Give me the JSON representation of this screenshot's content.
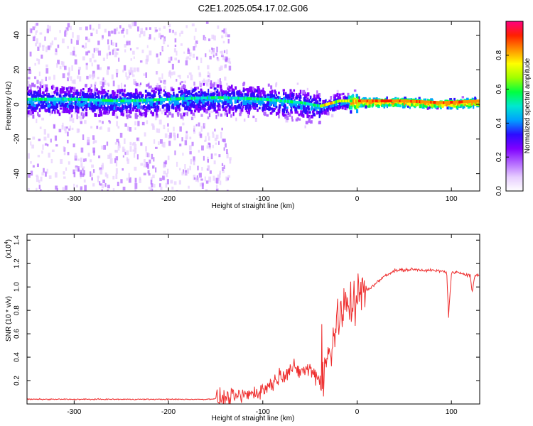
{
  "title": "C2E1.2025.054.17.02.G06",
  "chart_data": [
    {
      "type": "heatmap",
      "xlabel": "Height of straight line (km)",
      "ylabel": "Frequency (Hz)",
      "xlim": [
        -350,
        130
      ],
      "ylim": [
        -50,
        48
      ],
      "xticks": [
        "-300",
        "-200",
        "-100",
        "0",
        "100"
      ],
      "xtick_values": [
        -300,
        -200,
        -100,
        0,
        100
      ],
      "yticks": [
        "-40",
        "-20",
        "0",
        "20",
        "40"
      ],
      "ytick_values": [
        -40,
        -20,
        0,
        20,
        40
      ],
      "colorbar": {
        "label": "Normalized spectral amplitude",
        "range": [
          0,
          1
        ],
        "ticks": [
          "0.0",
          "0.2",
          "0.4",
          "0.6",
          "0.8"
        ],
        "tick_values": [
          0.0,
          0.2,
          0.4,
          0.6,
          0.8
        ],
        "colors": [
          "#ffffff",
          "#e6ccff",
          "#b266ff",
          "#7f00ff",
          "#2c0cff",
          "#00a0ff",
          "#00e8d0",
          "#00ff40",
          "#a0ff00",
          "#ffff00",
          "#ff9000",
          "#ff2000",
          "#ff0080"
        ]
      },
      "series": [
        {
          "x": [
            -350,
            -300,
            -250,
            -200,
            -150,
            -100,
            -60,
            -40,
            -20,
            0,
            50,
            90,
            130
          ],
          "y": [
            3,
            3,
            2,
            3,
            4,
            3,
            1,
            -1,
            2,
            2,
            2,
            1,
            2
          ]
        }
      ]
    },
    {
      "type": "line",
      "xlabel": "Height of straight line (km)",
      "ylabel": "SNR (10 * v/v)",
      "scale_label": "(x10",
      "scale_exp": "4",
      "xlim": [
        -350,
        130
      ],
      "ylim": [
        0,
        1.45
      ],
      "xticks": [
        "-300",
        "-200",
        "-100",
        "0",
        "100"
      ],
      "xtick_values": [
        -300,
        -200,
        -100,
        0,
        100
      ],
      "yticks": [
        "0.2",
        "0.4",
        "0.6",
        "0.8",
        "1.0",
        "1.2",
        "1.4"
      ],
      "ytick_values": [
        0.2,
        0.4,
        0.6,
        0.8,
        1.0,
        1.2,
        1.4
      ],
      "color": "#ee2e2e",
      "series": [
        {
          "x": [
            -350,
            -300,
            -250,
            -200,
            -160,
            -140,
            -120,
            -100,
            -90,
            -80,
            -70,
            -60,
            -50,
            -40,
            -35,
            -30,
            -25,
            -20,
            -15,
            -10,
            -5,
            0,
            10,
            20,
            30,
            40,
            60,
            80,
            95,
            97,
            100,
            110,
            120,
            122,
            125,
            130
          ],
          "y": [
            0.04,
            0.04,
            0.04,
            0.04,
            0.04,
            0.05,
            0.07,
            0.12,
            0.18,
            0.25,
            0.3,
            0.28,
            0.3,
            0.22,
            0.25,
            0.45,
            0.6,
            0.72,
            0.8,
            0.85,
            0.88,
            0.9,
            0.97,
            1.03,
            1.1,
            1.14,
            1.15,
            1.14,
            1.13,
            0.75,
            1.12,
            1.12,
            1.1,
            0.95,
            1.1,
            1.1
          ]
        }
      ]
    }
  ]
}
